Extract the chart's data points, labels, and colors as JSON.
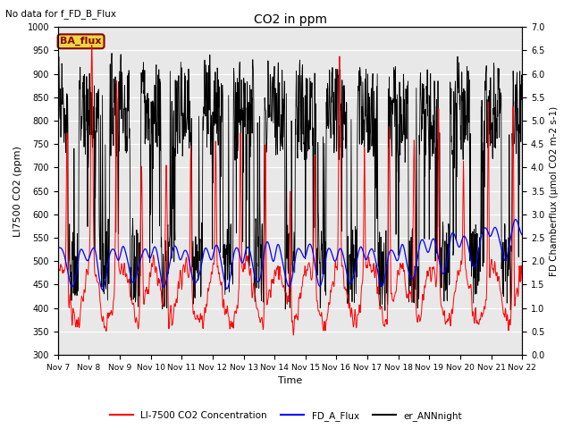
{
  "title": "CO2 in ppm",
  "top_left_text": "No data for f_FD_B_Flux",
  "xlabel": "Time",
  "ylabel_left": "LI7500 CO2 (ppm)",
  "ylabel_right": "FD Chamberflux (μmol CO2 m-2 s-1)",
  "annotation_box_text": "BA_flux",
  "annotation_box_color": "#e8d840",
  "annotation_text_color": "#8b0000",
  "ylim_left": [
    300,
    1000
  ],
  "ylim_right": [
    0.0,
    7.0
  ],
  "background_color": "#e8e8e8",
  "fig_background": "#ffffff",
  "legend_items": [
    {
      "label": "LI-7500 CO2 Concentration",
      "color": "red"
    },
    {
      "label": "FD_A_Flux",
      "color": "blue"
    },
    {
      "label": "er_ANNnight",
      "color": "black"
    }
  ],
  "n_days": 15,
  "n_points_per_day": 96,
  "seed": 7
}
